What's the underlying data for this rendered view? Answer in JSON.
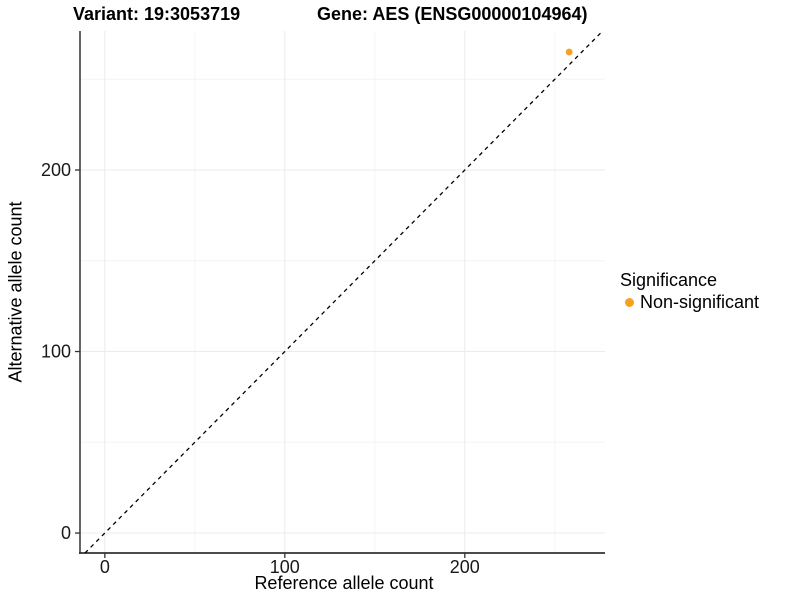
{
  "chart_data": {
    "type": "scatter",
    "title_left": "Variant: 19:3053719",
    "title_right": "Gene: AES (ENSG00000104964)",
    "xlabel": "Reference allele count",
    "ylabel": "Alternative allele count",
    "xlim": [
      -13.8,
      277.9
    ],
    "ylim": [
      -11.0,
      276.6
    ],
    "xticks": [
      0,
      100,
      200
    ],
    "yticks": [
      0,
      100,
      200
    ],
    "minor_breaks_x": [
      50,
      150,
      250
    ],
    "minor_breaks_y": [
      50,
      150,
      250
    ],
    "grid": true,
    "identity_line": {
      "slope": 1,
      "intercept": 0,
      "style": "dashed",
      "color": "#000000"
    },
    "series": [
      {
        "name": "Non-significant",
        "color": "#F9A01E",
        "points": [
          {
            "x": 258,
            "y": 265
          }
        ]
      }
    ],
    "legend": {
      "title": "Significance",
      "position": "right",
      "items": [
        {
          "label": "Non-significant",
          "color": "#F9A01E"
        }
      ]
    }
  },
  "theme": {
    "background": "#ffffff",
    "grid_major_color": "#ebebeb",
    "grid_minor_color": "#f4f4f4",
    "axis_line_color": "#333333",
    "tick_color": "#333333",
    "tick_label_color": "#1a1a1a",
    "point_color": "#F9A01E"
  }
}
